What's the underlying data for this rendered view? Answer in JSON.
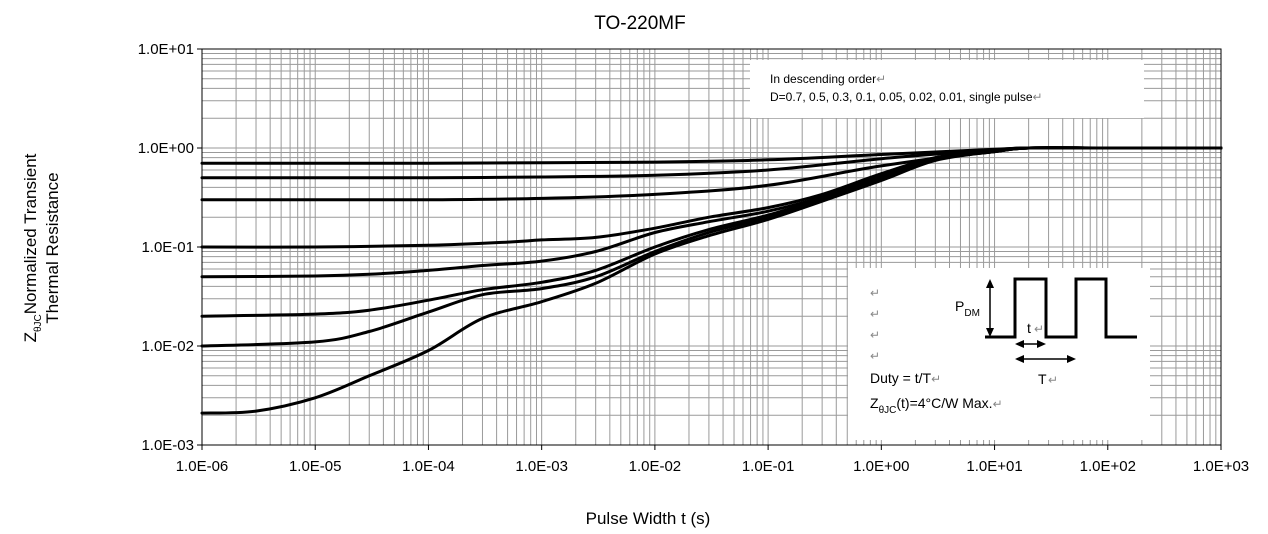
{
  "chart_data": {
    "type": "line",
    "title": "TO-220MF",
    "xlabel": "Pulse Width t (s)",
    "ylabel_line1": "Normalized Transient",
    "ylabel_line2": "Thermal Resistance",
    "ylabel_symbol": "Z",
    "ylabel_subscript": "θJC",
    "x_scale": "log",
    "y_scale": "log",
    "xlim": [
      1e-06,
      1000
    ],
    "ylim": [
      0.001,
      10
    ],
    "grid": true,
    "x_ticks": [
      "1.0E-06",
      "1.0E-05",
      "1.0E-04",
      "1.0E-03",
      "1.0E-02",
      "1.0E-01",
      "1.0E+00",
      "1.0E+01",
      "1.0E+02",
      "1.0E+03"
    ],
    "y_ticks": [
      "1.0E+01",
      "1.0E+00",
      "1.0E-01",
      "1.0E-02",
      "1.0E-03"
    ],
    "legend_note": {
      "line1": "In descending order",
      "line2": "D=0.7, 0.5, 0.3, 0.1, 0.05, 0.02, 0.01, single pulse",
      "return_mark": "↵"
    },
    "series": [
      {
        "x": [
          1e-06,
          1e-05,
          0.0001,
          0.001,
          0.01,
          0.1,
          1,
          10,
          20,
          100,
          1000
        ],
        "y": [
          0.7,
          0.7,
          0.7,
          0.71,
          0.72,
          0.76,
          0.86,
          0.97,
          1.0,
          1.0,
          1.0
        ]
      },
      {
        "x": [
          1e-06,
          1e-05,
          0.0001,
          0.001,
          0.01,
          0.1,
          1,
          10,
          20,
          100,
          1000
        ],
        "y": [
          0.5,
          0.5,
          0.5,
          0.51,
          0.53,
          0.6,
          0.78,
          0.96,
          1.0,
          1.0,
          1.0
        ]
      },
      {
        "x": [
          1e-06,
          1e-05,
          0.0001,
          0.001,
          0.01,
          0.1,
          1,
          10,
          20,
          100,
          1000
        ],
        "y": [
          0.3,
          0.3,
          0.3,
          0.31,
          0.34,
          0.42,
          0.66,
          0.94,
          1.0,
          1.0,
          1.0
        ]
      },
      {
        "x": [
          1e-06,
          1e-05,
          0.0001,
          0.0005,
          0.001,
          0.003,
          0.01,
          0.03,
          0.1,
          0.3,
          1,
          3,
          10,
          20,
          100,
          1000
        ],
        "y": [
          0.1,
          0.1,
          0.104,
          0.112,
          0.118,
          0.125,
          0.155,
          0.2,
          0.25,
          0.34,
          0.55,
          0.8,
          0.93,
          1.0,
          1.0,
          1.0
        ]
      },
      {
        "x": [
          1e-06,
          1e-05,
          3e-05,
          0.0001,
          0.0003,
          0.001,
          0.003,
          0.01,
          0.03,
          0.1,
          0.3,
          1,
          3,
          10,
          20,
          100,
          1000
        ],
        "y": [
          0.05,
          0.051,
          0.053,
          0.058,
          0.065,
          0.072,
          0.09,
          0.14,
          0.18,
          0.23,
          0.32,
          0.52,
          0.78,
          0.92,
          1.0,
          1.0,
          1.0
        ]
      },
      {
        "x": [
          1e-06,
          1e-05,
          3e-05,
          0.0001,
          0.0003,
          0.001,
          0.003,
          0.01,
          0.03,
          0.1,
          0.3,
          1,
          3,
          10,
          20,
          100,
          1000
        ],
        "y": [
          0.02,
          0.021,
          0.023,
          0.029,
          0.037,
          0.044,
          0.058,
          0.1,
          0.15,
          0.21,
          0.31,
          0.5,
          0.77,
          0.92,
          1.0,
          1.0,
          1.0
        ]
      },
      {
        "x": [
          1e-06,
          1e-05,
          3e-05,
          0.0001,
          0.0003,
          0.001,
          0.003,
          0.01,
          0.03,
          0.1,
          0.3,
          1,
          3,
          10,
          20,
          100,
          1000
        ],
        "y": [
          0.01,
          0.011,
          0.014,
          0.022,
          0.033,
          0.038,
          0.05,
          0.09,
          0.14,
          0.2,
          0.3,
          0.48,
          0.76,
          0.92,
          1.0,
          1.0,
          1.0
        ]
      },
      {
        "x": [
          1e-06,
          3e-06,
          1e-05,
          3e-05,
          0.0001,
          0.0003,
          0.001,
          0.003,
          0.01,
          0.03,
          0.1,
          0.3,
          1,
          3,
          10,
          20,
          100,
          1000
        ],
        "y": [
          0.0021,
          0.0022,
          0.003,
          0.005,
          0.009,
          0.019,
          0.028,
          0.043,
          0.085,
          0.13,
          0.19,
          0.29,
          0.47,
          0.75,
          0.92,
          1.0,
          1.0,
          1.0
        ]
      }
    ]
  },
  "inset": {
    "pdm_symbol": "P",
    "pdm_subscript": "DM",
    "t_label": "t",
    "T_label": "T",
    "duty_text": "Duty = t/T",
    "z_symbol": "Z",
    "z_subscript": "θJC",
    "z_text": "(t)=4°C/W Max.",
    "return_mark": "↵"
  }
}
